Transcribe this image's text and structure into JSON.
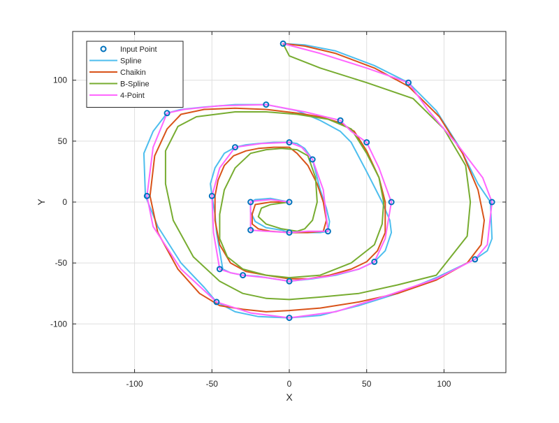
{
  "chart_data": {
    "type": "line",
    "title": "",
    "xlabel": "X",
    "ylabel": "Y",
    "xlim": [
      -140,
      140
    ],
    "ylim": [
      -140,
      140
    ],
    "xticks": [
      -100,
      -50,
      0,
      50,
      100
    ],
    "yticks": [
      100,
      50,
      0,
      -50,
      -100
    ],
    "grid": true,
    "legend_position": "top-left",
    "input_points": {
      "name": "Input Point",
      "color": "#0072BD",
      "marker": "circle",
      "x": [
        0,
        -25,
        -25,
        0,
        25,
        15,
        0,
        -35,
        -50,
        -45,
        -30,
        0,
        55,
        66,
        50,
        33,
        -15,
        -79,
        -92,
        -47,
        0,
        120,
        131,
        77,
        -4
      ],
      "y": [
        0,
        0,
        -23,
        -25,
        -24,
        35,
        49,
        45,
        5,
        -55,
        -60,
        -65,
        -49,
        0,
        49,
        67,
        80,
        73,
        5,
        -82,
        -95,
        -47,
        0,
        98,
        130
      ]
    },
    "series": [
      {
        "name": "Spline",
        "color": "#4DBEEE",
        "x": [
          0,
          -12,
          -22,
          -25,
          -25,
          -22,
          -15,
          -5,
          0,
          10,
          20,
          25,
          26,
          24,
          20,
          15,
          10,
          5,
          0,
          -10,
          -20,
          -28,
          -35,
          -42,
          -48,
          -51,
          -50,
          -48,
          -47,
          -45,
          -43,
          -38,
          -30,
          -20,
          -10,
          0,
          15,
          30,
          45,
          55,
          62,
          66,
          65,
          60,
          50,
          40,
          33,
          20,
          5,
          -15,
          -35,
          -55,
          -70,
          -79,
          -88,
          -94,
          -93,
          -85,
          -70,
          -55,
          -47,
          -35,
          -20,
          0,
          20,
          45,
          70,
          95,
          120,
          128,
          131,
          130,
          122,
          110,
          95,
          77,
          55,
          30,
          10,
          -4
        ],
        "y": [
          0,
          3,
          2,
          0,
          -8,
          -16,
          -21,
          -23,
          -25,
          -25,
          -25,
          -24,
          -16,
          -5,
          10,
          35,
          44,
          48,
          49,
          49,
          48,
          47,
          45,
          40,
          28,
          15,
          5,
          -10,
          -25,
          -40,
          -55,
          -58,
          -60,
          -61,
          -63,
          -65,
          -63,
          -60,
          -55,
          -49,
          -40,
          -25,
          -15,
          0,
          25,
          49,
          58,
          67,
          75,
          80,
          80,
          78,
          76,
          73,
          58,
          40,
          5,
          -20,
          -50,
          -70,
          -82,
          -90,
          -94,
          -95,
          -93,
          -85,
          -75,
          -62,
          -47,
          -40,
          -30,
          0,
          15,
          45,
          75,
          98,
          112,
          124,
          129,
          130
        ]
      },
      {
        "name": "Chaikin",
        "color": "#D95319",
        "x": [
          0,
          -12,
          -22,
          -24,
          -24,
          -20,
          -12,
          0,
          12,
          22,
          24,
          22,
          18,
          12,
          5,
          0,
          -10,
          -20,
          -28,
          -36,
          -42,
          -46,
          -48,
          -48,
          -45,
          -38,
          -28,
          -15,
          0,
          12,
          26,
          40,
          50,
          57,
          62,
          62,
          58,
          50,
          42,
          33,
          20,
          5,
          -15,
          -35,
          -55,
          -70,
          -79,
          -87,
          -90,
          -85,
          -72,
          -58,
          -45,
          -30,
          -15,
          0,
          20,
          45,
          70,
          95,
          115,
          124,
          126,
          122,
          112,
          97,
          77,
          55,
          30,
          10,
          -4
        ],
        "y": [
          0,
          0,
          -2,
          -10,
          -18,
          -22,
          -24,
          -25,
          -25,
          -24,
          -15,
          0,
          15,
          30,
          40,
          45,
          45,
          44,
          42,
          38,
          30,
          18,
          5,
          -15,
          -35,
          -50,
          -57,
          -60,
          -63,
          -63,
          -60,
          -55,
          -49,
          -40,
          -25,
          0,
          20,
          42,
          58,
          65,
          70,
          73,
          76,
          77,
          76,
          72,
          60,
          38,
          5,
          -25,
          -55,
          -75,
          -85,
          -88,
          -90,
          -89,
          -87,
          -82,
          -75,
          -64,
          -50,
          -35,
          -15,
          10,
          40,
          70,
          95,
          110,
          122,
          128,
          130
        ]
      },
      {
        "name": "B-Spline",
        "color": "#77AC30",
        "x": [
          0,
          -12,
          -18,
          -20,
          -15,
          -5,
          5,
          10,
          15,
          18,
          17,
          12,
          5,
          -5,
          -15,
          -25,
          -35,
          -42,
          -45,
          -45,
          -40,
          -30,
          -15,
          0,
          20,
          40,
          55,
          60,
          61,
          58,
          50,
          40,
          25,
          5,
          -15,
          -35,
          -60,
          -72,
          -80,
          -80,
          -75,
          -62,
          -45,
          -30,
          -15,
          0,
          20,
          45,
          70,
          95,
          115,
          117,
          114,
          100,
          80,
          50,
          20,
          0,
          -4
        ],
        "y": [
          0,
          -2,
          -5,
          -12,
          -18,
          -22,
          -24,
          -22,
          -15,
          0,
          20,
          38,
          43,
          44,
          43,
          40,
          28,
          10,
          -10,
          -30,
          -45,
          -55,
          -60,
          -62,
          -60,
          -50,
          -35,
          -18,
          0,
          20,
          40,
          60,
          68,
          72,
          74,
          74,
          70,
          62,
          42,
          15,
          -15,
          -45,
          -65,
          -75,
          -79,
          -80,
          -78,
          -75,
          -68,
          -60,
          -28,
          0,
          30,
          60,
          85,
          98,
          110,
          120,
          130
        ]
      },
      {
        "name": "4-Point",
        "color": "#FF66FF",
        "x": [
          0,
          -12,
          -22,
          -25,
          -25,
          -15,
          0,
          12,
          25,
          22,
          15,
          8,
          0,
          -18,
          -35,
          -45,
          -50,
          -49,
          -45,
          -38,
          -30,
          -15,
          0,
          25,
          45,
          55,
          62,
          66,
          58,
          50,
          40,
          33,
          10,
          -15,
          -45,
          -68,
          -79,
          -88,
          -92,
          -88,
          -70,
          -47,
          -25,
          0,
          30,
          65,
          95,
          120,
          128,
          131,
          125,
          110,
          90,
          77,
          50,
          20,
          -4
        ],
        "y": [
          0,
          2,
          1,
          0,
          -23,
          -24,
          -25,
          -24,
          -24,
          10,
          35,
          45,
          49,
          48,
          45,
          28,
          5,
          -25,
          -55,
          -58,
          -60,
          -62,
          -65,
          -61,
          -55,
          -49,
          -30,
          0,
          28,
          49,
          58,
          67,
          74,
          80,
          79,
          76,
          73,
          45,
          5,
          -20,
          -55,
          -82,
          -91,
          -95,
          -90,
          -76,
          -63,
          -47,
          -35,
          0,
          20,
          45,
          75,
          98,
          110,
          122,
          130
        ]
      }
    ]
  }
}
